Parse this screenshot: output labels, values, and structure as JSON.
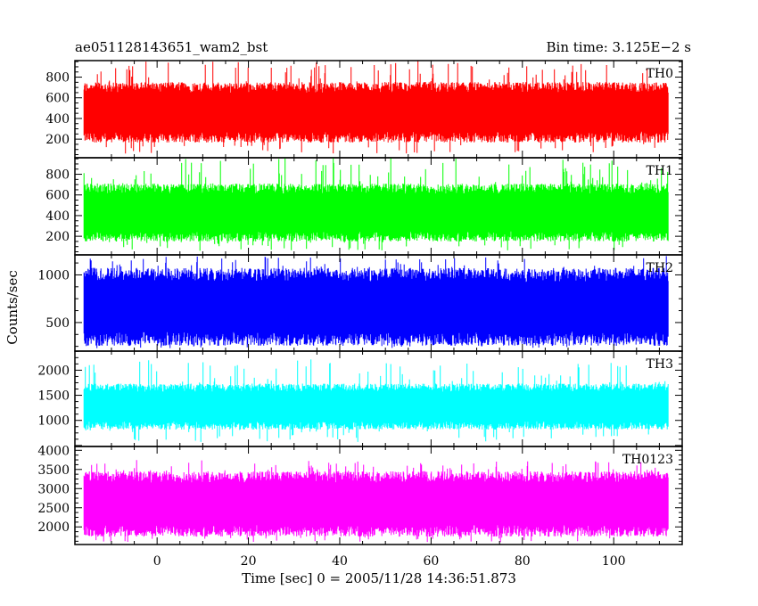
{
  "header": {
    "source_name": "ae051128143651_wam2_bst",
    "bin_time": "Bin time: 3.125E−2 s"
  },
  "chart_data": {
    "type": "line",
    "xlabel": "Time [sec] 0 = 2005/11/28 14:36:51.873",
    "ylabel": "Counts/sec",
    "xlim": [
      -18,
      115
    ],
    "x_range_data": [
      -16,
      112
    ],
    "x_ticks": [
      0,
      20,
      40,
      60,
      80,
      100
    ],
    "panels": [
      {
        "name": "TH0",
        "color": "#ff0000",
        "ylim": [
          20,
          960
        ],
        "yticks": [
          200,
          400,
          600,
          800
        ],
        "typical_low": 220,
        "typical_high": 700,
        "min": 60,
        "max": 960
      },
      {
        "name": "TH1",
        "color": "#00ff00",
        "ylim": [
          20,
          960
        ],
        "yticks": [
          200,
          400,
          600,
          800
        ],
        "typical_low": 200,
        "typical_high": 660,
        "min": 60,
        "max": 960
      },
      {
        "name": "TH2",
        "color": "#0000ff",
        "ylim": [
          200,
          1210
        ],
        "yticks": [
          500,
          1000
        ],
        "typical_low": 330,
        "typical_high": 1000,
        "min": 230,
        "max": 1210
      },
      {
        "name": "TH3",
        "color": "#00ffff",
        "ylim": [
          480,
          2380
        ],
        "yticks": [
          1000,
          1500,
          2000
        ],
        "typical_low": 900,
        "typical_high": 1650,
        "min": 560,
        "max": 2250
      },
      {
        "name": "TH0123",
        "color": "#ff00ff",
        "ylim": [
          1540,
          4100
        ],
        "yticks": [
          2000,
          2500,
          3000,
          3500,
          4000
        ],
        "typical_low": 1900,
        "typical_high": 3300,
        "min": 1600,
        "max": 3750
      }
    ]
  }
}
